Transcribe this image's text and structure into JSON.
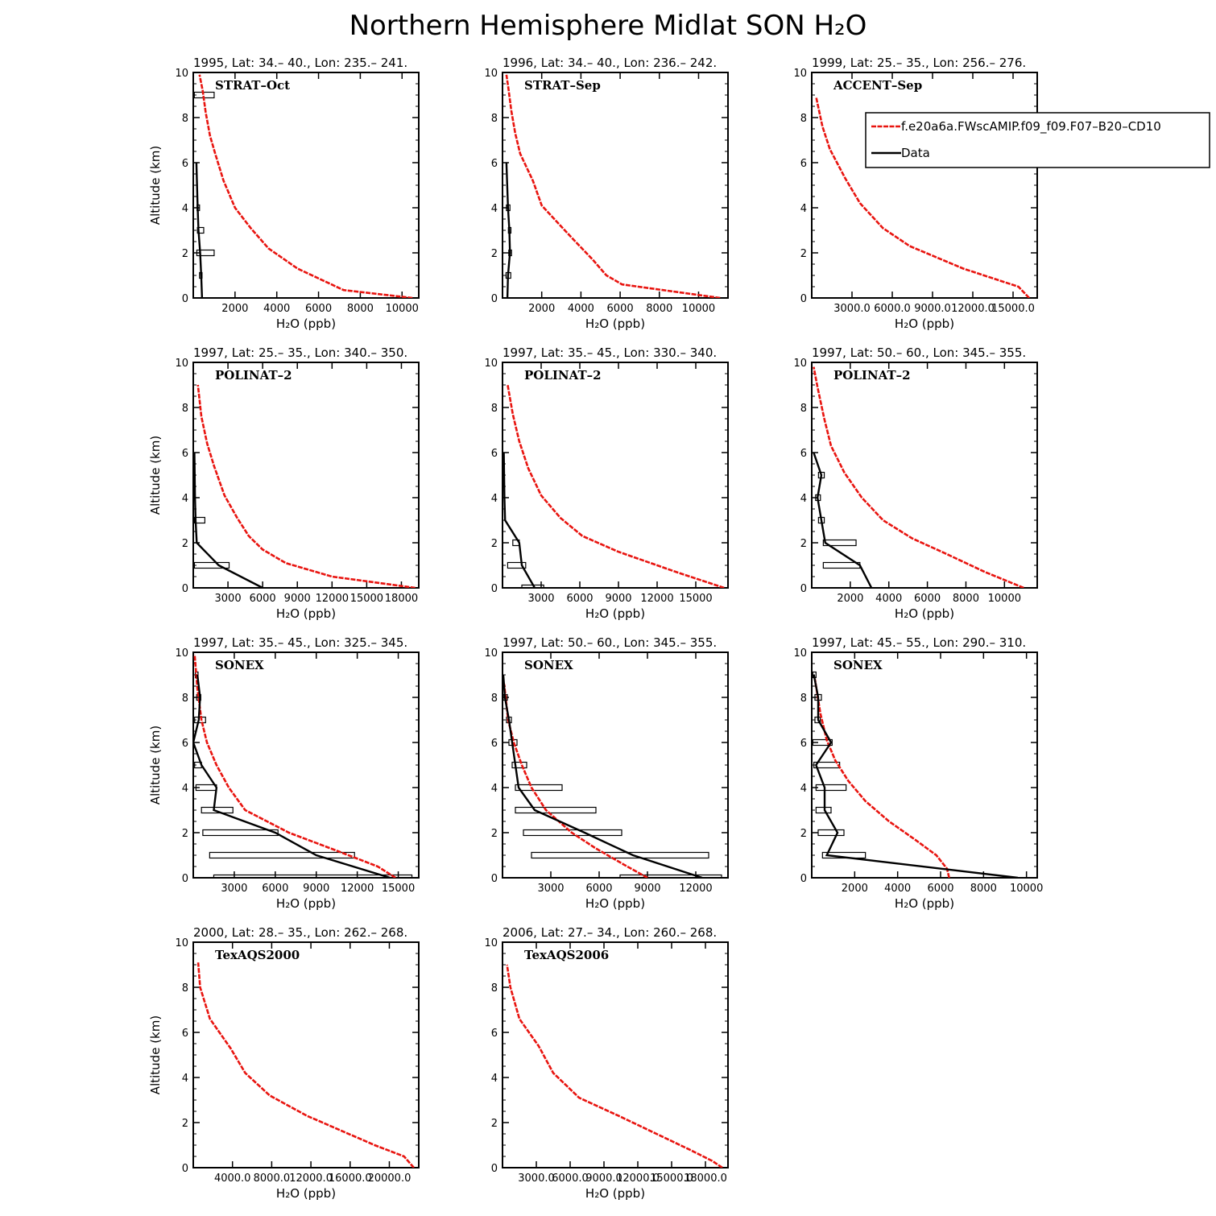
{
  "figure": {
    "title": "Northern Hemisphere Midlat SON H₂O"
  },
  "legend": {
    "model_label": "f.e20a6a.FWscAMIP.f09_f09.F07–B20–CD10",
    "data_label": "Data",
    "model_color": "#e8140f",
    "data_color": "#000000"
  },
  "axes": {
    "ylabel": "Altitude (km)",
    "xlabel": "H₂O (ppb)"
  },
  "chart_data": [
    {
      "type": "line",
      "title": "1995, Lat: 34.– 40., Lon: 235.– 241.",
      "campaign": "STRAT–Oct",
      "xlim": [
        0,
        10800
      ],
      "ylim": [
        0,
        10
      ],
      "xticks": [
        2000,
        4000,
        6000,
        8000,
        10000
      ],
      "xticklabels": [
        "2000",
        "4000",
        "6000",
        "8000",
        "10000"
      ],
      "yticks": [
        0,
        2,
        4,
        6,
        8,
        10
      ],
      "model": {
        "x": [
          10500,
          7200,
          5000,
          3600,
          2750,
          2000,
          1450,
          1050,
          800,
          600,
          450,
          300
        ],
        "y": [
          0,
          0.35,
          1.3,
          2.2,
          3.1,
          4.0,
          5.2,
          6.4,
          7.2,
          8.2,
          9.2,
          9.9
        ]
      },
      "data": {
        "x": [
          420,
          380,
          330,
          250,
          210,
          150
        ],
        "y": [
          0,
          1,
          2,
          3,
          4,
          6
        ]
      },
      "boxes": [
        {
          "alt": 9,
          "lo": 50,
          "hi": 1000
        },
        {
          "alt": 2,
          "lo": 170,
          "hi": 1000
        },
        {
          "alt": 3,
          "lo": 200,
          "hi": 500
        },
        {
          "alt": 1,
          "lo": 300,
          "hi": 420
        },
        {
          "alt": 4,
          "lo": 180,
          "hi": 300
        }
      ],
      "legend_shown": false
    },
    {
      "type": "line",
      "title": "1996, Lat: 34.– 40., Lon: 236.– 242.",
      "campaign": "STRAT–Sep",
      "xlim": [
        0,
        11500
      ],
      "ylim": [
        0,
        10
      ],
      "xticks": [
        2000,
        4000,
        6000,
        8000,
        10000
      ],
      "xticklabels": [
        "2000",
        "4000",
        "6000",
        "8000",
        "10000"
      ],
      "yticks": [
        0,
        2,
        4,
        6,
        8,
        10
      ],
      "model": {
        "x": [
          11100,
          6100,
          5300,
          4600,
          3500,
          2000,
          1550,
          900,
          650,
          450,
          300,
          200
        ],
        "y": [
          0,
          0.6,
          1.0,
          1.7,
          2.7,
          4.1,
          5.2,
          6.4,
          7.3,
          8.3,
          9.3,
          9.9
        ]
      },
      "data": {
        "x": [
          250,
          280,
          380,
          350,
          280,
          200
        ],
        "y": [
          0,
          1,
          2,
          3,
          4,
          6
        ]
      },
      "boxes": [
        {
          "alt": 1,
          "lo": 180,
          "hi": 420
        },
        {
          "alt": 2,
          "lo": 320,
          "hi": 460
        },
        {
          "alt": 3,
          "lo": 300,
          "hi": 430
        },
        {
          "alt": 4,
          "lo": 200,
          "hi": 380
        }
      ],
      "legend_shown": false
    },
    {
      "type": "line",
      "title": "1999, Lat: 25.– 35., Lon: 256.– 276.",
      "campaign": "ACCENT–Sep",
      "xlim": [
        0,
        16800
      ],
      "ylim": [
        0,
        10
      ],
      "xticks": [
        3000,
        6000,
        9000,
        12000,
        15000
      ],
      "xticklabels": [
        "3000.0",
        "6000.0",
        "9000.0",
        "12000.0",
        "15000.0"
      ],
      "yticks": [
        0,
        2,
        4,
        6,
        8,
        10
      ],
      "model": {
        "x": [
          16200,
          15400,
          11300,
          7300,
          5300,
          3600,
          2500,
          1350,
          800,
          330
        ],
        "y": [
          0,
          0.5,
          1.3,
          2.3,
          3.1,
          4.2,
          5.3,
          6.6,
          7.6,
          8.9
        ]
      },
      "legend_shown": true
    },
    {
      "type": "line",
      "title": "1997, Lat: 25.– 35., Lon: 340.– 350.",
      "campaign": "POLINAT–2",
      "xlim": [
        0,
        19500
      ],
      "ylim": [
        0,
        10
      ],
      "xticks": [
        3000,
        6000,
        9000,
        12000,
        15000,
        18000
      ],
      "xticklabels": [
        "3000",
        "6000",
        "9000",
        "12000",
        "15000",
        "18000"
      ],
      "yticks": [
        0,
        2,
        4,
        6,
        8,
        10
      ],
      "model": {
        "x": [
          19200,
          12000,
          8000,
          6000,
          4800,
          3800,
          2700,
          1800,
          1200,
          700,
          400
        ],
        "y": [
          0,
          0.5,
          1.1,
          1.7,
          2.3,
          3.1,
          4.1,
          5.4,
          6.4,
          7.6,
          9.0
        ]
      },
      "data": {
        "x": [
          6000,
          2200,
          300,
          200,
          150,
          100
        ],
        "y": [
          0,
          1,
          2,
          3,
          4,
          6
        ]
      },
      "boxes": [
        {
          "alt": 1,
          "lo": 100,
          "hi": 3100
        },
        {
          "alt": 3,
          "lo": 100,
          "hi": 1000
        }
      ],
      "legend_shown": false
    },
    {
      "type": "line",
      "title": "1997, Lat: 35.– 45., Lon: 330.– 340.",
      "campaign": "POLINAT–2",
      "xlim": [
        0,
        17500
      ],
      "ylim": [
        0,
        10
      ],
      "xticks": [
        3000,
        6000,
        9000,
        12000,
        15000
      ],
      "xticklabels": [
        "3000",
        "6000",
        "9000",
        "12000",
        "15000"
      ],
      "yticks": [
        0,
        2,
        4,
        6,
        8,
        10
      ],
      "model": {
        "x": [
          17200,
          13500,
          9000,
          6200,
          4500,
          3000,
          2000,
          1300,
          800,
          400
        ],
        "y": [
          0,
          0.7,
          1.6,
          2.3,
          3.1,
          4.1,
          5.3,
          6.5,
          7.7,
          9.0
        ]
      },
      "data": {
        "x": [
          2500,
          1500,
          1300,
          200,
          150,
          100
        ],
        "y": [
          0,
          1,
          2,
          3,
          4,
          6
        ]
      },
      "boxes": [
        {
          "alt": 1,
          "lo": 400,
          "hi": 1800
        },
        {
          "alt": 2,
          "lo": 800,
          "hi": 1300
        },
        {
          "alt": 0,
          "lo": 1500,
          "hi": 3200
        }
      ],
      "legend_shown": false
    },
    {
      "type": "line",
      "title": "1997, Lat: 50.– 60., Lon: 345.– 355.",
      "campaign": "POLINAT–2",
      "xlim": [
        0,
        11700
      ],
      "ylim": [
        0,
        10
      ],
      "xticks": [
        2000,
        4000,
        6000,
        8000,
        10000
      ],
      "xticklabels": [
        "2000",
        "4000",
        "6000",
        "8000",
        "10000"
      ],
      "yticks": [
        0,
        2,
        4,
        6,
        8,
        10
      ],
      "model": {
        "x": [
          11000,
          9000,
          7000,
          5200,
          3700,
          2600,
          1700,
          1000,
          650,
          300,
          100
        ],
        "y": [
          0,
          0.7,
          1.5,
          2.2,
          3.0,
          4.0,
          5.1,
          6.3,
          7.5,
          8.9,
          9.8
        ]
      },
      "data": {
        "x": [
          3100,
          2500,
          700,
          500,
          300,
          500,
          100
        ],
        "y": [
          0,
          1,
          2,
          3,
          4,
          5,
          6
        ]
      },
      "boxes": [
        {
          "alt": 1,
          "lo": 600,
          "hi": 2500
        },
        {
          "alt": 2,
          "lo": 600,
          "hi": 2300
        },
        {
          "alt": 3,
          "lo": 350,
          "hi": 650
        },
        {
          "alt": 4,
          "lo": 200,
          "hi": 450
        },
        {
          "alt": 5,
          "lo": 350,
          "hi": 650
        }
      ],
      "legend_shown": false
    },
    {
      "type": "line",
      "title": "1997, Lat: 35.– 45., Lon: 325.– 345.",
      "campaign": "SONEX",
      "xlim": [
        0,
        16500
      ],
      "ylim": [
        0,
        10
      ],
      "xticks": [
        3000,
        6000,
        9000,
        12000,
        15000
      ],
      "xticklabels": [
        "3000",
        "6000",
        "9000",
        "12000",
        "15000"
      ],
      "yticks": [
        0,
        2,
        4,
        6,
        8,
        10
      ],
      "model": {
        "x": [
          14800,
          13500,
          10500,
          7000,
          3800,
          2600,
          1700,
          1000,
          600,
          300,
          100
        ],
        "y": [
          0,
          0.5,
          1.2,
          2.0,
          3.0,
          4.0,
          5.0,
          6.0,
          7.0,
          8.4,
          9.9
        ]
      },
      "data": {
        "x": [
          14400,
          9000,
          6000,
          1500,
          1700,
          600,
          0,
          400,
          500,
          300
        ],
        "y": [
          0,
          1,
          2,
          3,
          4,
          5,
          6,
          7,
          8,
          9
        ]
      },
      "boxes": [
        {
          "alt": 0,
          "lo": 1500,
          "hi": 16000
        },
        {
          "alt": 1,
          "lo": 1200,
          "hi": 11800
        },
        {
          "alt": 2,
          "lo": 700,
          "hi": 6200
        },
        {
          "alt": 3,
          "lo": 600,
          "hi": 2900
        },
        {
          "alt": 4,
          "lo": 200,
          "hi": 1700
        },
        {
          "alt": 5,
          "lo": 100,
          "hi": 600
        },
        {
          "alt": 7,
          "lo": 100,
          "hi": 900
        },
        {
          "alt": 8,
          "lo": 250,
          "hi": 550
        },
        {
          "alt": 9,
          "lo": 150,
          "hi": 350
        }
      ],
      "legend_shown": false
    },
    {
      "type": "line",
      "title": "1997, Lat: 50.– 60., Lon: 345.– 355.",
      "campaign": "SONEX",
      "xlim": [
        0,
        14000
      ],
      "ylim": [
        0,
        10
      ],
      "xticks": [
        3000,
        6000,
        9000,
        12000
      ],
      "xticklabels": [
        "3000",
        "6000",
        "9000",
        "12000"
      ],
      "yticks": [
        0,
        2,
        4,
        6,
        8,
        10
      ],
      "model": {
        "x": [
          9000,
          7500,
          5800,
          4300,
          2700,
          1800,
          1200,
          700,
          350,
          100
        ],
        "y": [
          0,
          0.6,
          1.3,
          2.0,
          3.0,
          4.0,
          5.0,
          6.0,
          7.0,
          8.6
        ]
      },
      "data": {
        "x": [
          12400,
          8100,
          5100,
          2000,
          1000,
          800,
          600,
          400,
          150,
          50
        ],
        "y": [
          0,
          1,
          2,
          3,
          4,
          5,
          6,
          7,
          8,
          9
        ]
      },
      "boxes": [
        {
          "alt": 0,
          "lo": 7300,
          "hi": 13600
        },
        {
          "alt": 1,
          "lo": 1800,
          "hi": 12800
        },
        {
          "alt": 2,
          "lo": 1300,
          "hi": 7400
        },
        {
          "alt": 3,
          "lo": 800,
          "hi": 5800
        },
        {
          "alt": 4,
          "lo": 800,
          "hi": 3700
        },
        {
          "alt": 5,
          "lo": 600,
          "hi": 1500
        },
        {
          "alt": 6,
          "lo": 400,
          "hi": 900
        },
        {
          "alt": 7,
          "lo": 250,
          "hi": 550
        },
        {
          "alt": 8,
          "lo": 50,
          "hi": 300
        }
      ],
      "legend_shown": false
    },
    {
      "type": "line",
      "title": "1997, Lat: 45.– 55., Lon: 290.– 310.",
      "campaign": "SONEX",
      "xlim": [
        0,
        10500
      ],
      "ylim": [
        0,
        10
      ],
      "xticks": [
        2000,
        4000,
        6000,
        8000,
        10000
      ],
      "xticklabels": [
        "2000",
        "4000",
        "6000",
        "8000",
        "10000"
      ],
      "yticks": [
        0,
        2,
        4,
        6,
        8,
        10
      ],
      "model": {
        "x": [
          6400,
          6300,
          5800,
          4800,
          3600,
          2500,
          1700,
          1100,
          700,
          400,
          150
        ],
        "y": [
          0,
          0.4,
          1.0,
          1.7,
          2.5,
          3.4,
          4.3,
          5.2,
          6.1,
          7.3,
          8.8
        ]
      },
      "data": {
        "x": [
          9600,
          700,
          1200,
          600,
          600,
          200,
          900,
          300,
          300,
          100
        ],
        "y": [
          0,
          1,
          2,
          3,
          4,
          5,
          6,
          7,
          8,
          9
        ]
      },
      "boxes": [
        {
          "alt": 1,
          "lo": 500,
          "hi": 2500
        },
        {
          "alt": 2,
          "lo": 300,
          "hi": 1500
        },
        {
          "alt": 3,
          "lo": 200,
          "hi": 900
        },
        {
          "alt": 4,
          "lo": 200,
          "hi": 1600
        },
        {
          "alt": 5,
          "lo": 100,
          "hi": 1300
        },
        {
          "alt": 6,
          "lo": 50,
          "hi": 950
        },
        {
          "alt": 7,
          "lo": 150,
          "hi": 400
        },
        {
          "alt": 8,
          "lo": 150,
          "hi": 450
        },
        {
          "alt": 9,
          "lo": 50,
          "hi": 200
        }
      ],
      "legend_shown": false
    },
    {
      "type": "line",
      "title": "2000, Lat: 28.– 35., Lon: 262.– 268.",
      "campaign": "TexAQS2000",
      "xlim": [
        0,
        23000
      ],
      "ylim": [
        0,
        10
      ],
      "xticks": [
        4000,
        8000,
        12000,
        16000,
        20000
      ],
      "xticklabels": [
        "4000.0",
        "8000.0",
        "12000.0",
        "16000.0",
        "20000.0"
      ],
      "yticks": [
        0,
        2,
        4,
        6,
        8,
        10
      ],
      "model": {
        "x": [
          22500,
          21500,
          18500,
          11600,
          7800,
          5300,
          3800,
          1700,
          700,
          500
        ],
        "y": [
          0,
          0.5,
          1.0,
          2.3,
          3.2,
          4.2,
          5.3,
          6.6,
          8.0,
          9.1
        ]
      },
      "legend_shown": false
    },
    {
      "type": "line",
      "title": "2006, Lat: 27.– 34., Lon: 260.– 268.",
      "campaign": "TexAQS2006",
      "xlim": [
        0,
        20000
      ],
      "ylim": [
        0,
        10
      ],
      "xticks": [
        3000,
        6000,
        9000,
        12000,
        15000,
        18000
      ],
      "xticklabels": [
        "3000.0",
        "6000.0",
        "9000.0",
        "12000.0",
        "15000.0",
        "18000.0"
      ],
      "yticks": [
        0,
        2,
        4,
        6,
        8,
        10
      ],
      "model": {
        "x": [
          19500,
          18600,
          16600,
          10300,
          6800,
          4500,
          3200,
          1500,
          700,
          400
        ],
        "y": [
          0,
          0.3,
          0.8,
          2.3,
          3.1,
          4.2,
          5.4,
          6.6,
          8.0,
          9.0
        ]
      },
      "legend_shown": false
    }
  ]
}
